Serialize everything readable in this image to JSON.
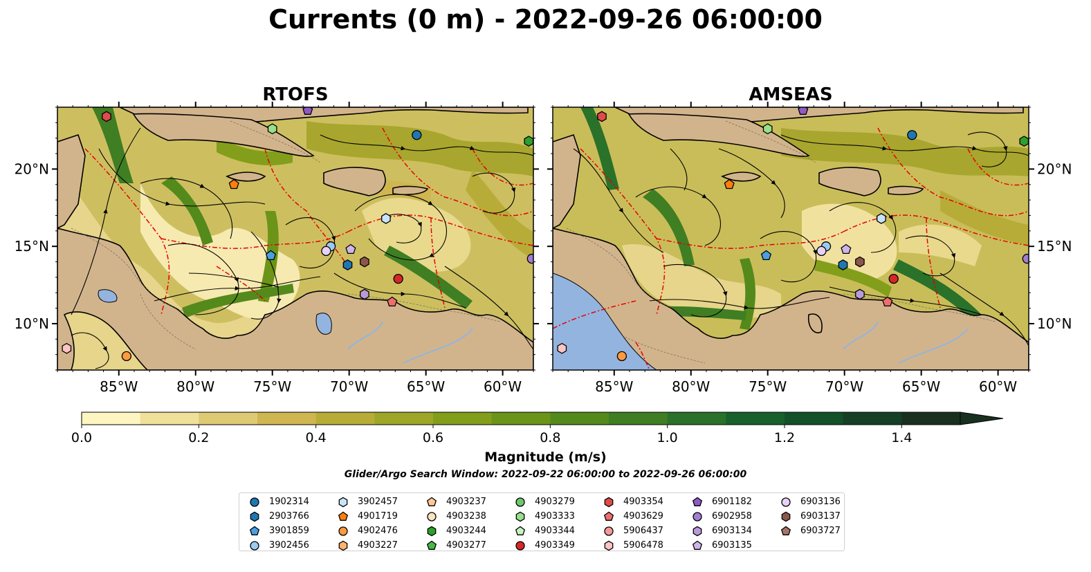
{
  "title": "Currents (0 m) - 2022-09-26 06:00:00",
  "panels": [
    {
      "title": "RTOFS"
    },
    {
      "title": "AMSEAS"
    }
  ],
  "map": {
    "lon_range": [
      -89,
      -58
    ],
    "lat_range": [
      7,
      24
    ],
    "x_ticks": [
      "85°W",
      "80°W",
      "75°W",
      "70°W",
      "65°W",
      "60°W"
    ],
    "y_ticks": [
      "20°N",
      "15°N",
      "10°N"
    ],
    "land_color": "#d2b48c",
    "river_color": "#93b4de",
    "eez_color": "#e60000"
  },
  "colorbar": {
    "label": "Magnitude (m/s)",
    "ticks": [
      "0.0",
      "0.2",
      "0.4",
      "0.6",
      "0.8",
      "1.0",
      "1.2",
      "1.4"
    ],
    "range": [
      0,
      1.5
    ],
    "extend": "max",
    "colors": [
      "#fdf6c0",
      "#efe09a",
      "#dfca74",
      "#cfb651",
      "#b8ac39",
      "#9ea628",
      "#839e1b",
      "#6b9418",
      "#54891c",
      "#3f7e23",
      "#2a7129",
      "#18602c",
      "#12512a",
      "#154026",
      "#1a301f"
    ]
  },
  "search_window": "Glider/Argo Search Window: 2022-09-22 06:00:00 to 2022-09-26 06:00:00",
  "legend": {
    "items": [
      {
        "id": "1902314",
        "marker": "circle",
        "color": "#1f77b4"
      },
      {
        "id": "2903766",
        "marker": "hexagon",
        "color": "#1f77b4"
      },
      {
        "id": "3901859",
        "marker": "pentagon",
        "color": "#4a9fe0"
      },
      {
        "id": "3902456",
        "marker": "circle",
        "color": "#9ec9f0"
      },
      {
        "id": "3902457",
        "marker": "hexagon",
        "color": "#c6e4fa"
      },
      {
        "id": "4901719",
        "marker": "pentagon",
        "color": "#ff7f0e"
      },
      {
        "id": "4902476",
        "marker": "circle",
        "color": "#fd9a3e"
      },
      {
        "id": "4903227",
        "marker": "hexagon",
        "color": "#ffb46a"
      },
      {
        "id": "4903237",
        "marker": "pentagon",
        "color": "#ffc896"
      },
      {
        "id": "4903238",
        "marker": "circle",
        "color": "#ffe2c2"
      },
      {
        "id": "4903244",
        "marker": "hexagon",
        "color": "#2ca02c"
      },
      {
        "id": "4903277",
        "marker": "pentagon",
        "color": "#48b848"
      },
      {
        "id": "4903279",
        "marker": "circle",
        "color": "#6cc86c"
      },
      {
        "id": "4903333",
        "marker": "hexagon",
        "color": "#98df8a"
      },
      {
        "id": "4903344",
        "marker": "pentagon",
        "color": "#c6f2c0"
      },
      {
        "id": "4903349",
        "marker": "circle",
        "color": "#d62728"
      },
      {
        "id": "4903354",
        "marker": "hexagon",
        "color": "#e04a4a"
      },
      {
        "id": "4903629",
        "marker": "pentagon",
        "color": "#ee6e6e"
      },
      {
        "id": "5906437",
        "marker": "circle",
        "color": "#f59a9a"
      },
      {
        "id": "5906478",
        "marker": "hexagon",
        "color": "#fcc4c4"
      },
      {
        "id": "6901182",
        "marker": "pentagon",
        "color": "#8e5bc4"
      },
      {
        "id": "6902958",
        "marker": "circle",
        "color": "#a27ed1"
      },
      {
        "id": "6903134",
        "marker": "hexagon",
        "color": "#b89ad9"
      },
      {
        "id": "6903135",
        "marker": "pentagon",
        "color": "#ceb6ea"
      },
      {
        "id": "6903136",
        "marker": "circle",
        "color": "#e6d2f6"
      },
      {
        "id": "6903137",
        "marker": "hexagon",
        "color": "#8c564b"
      },
      {
        "id": "6903727",
        "marker": "pentagon",
        "color": "#a7746a"
      }
    ]
  },
  "platforms": [
    {
      "id": "1902314",
      "lon": -65.6,
      "lat": 22.2
    },
    {
      "id": "2903766",
      "lon": -70.1,
      "lat": 13.8
    },
    {
      "id": "3901859",
      "lon": -75.1,
      "lat": 14.4
    },
    {
      "id": "3902456",
      "lon": -71.2,
      "lat": 15.0
    },
    {
      "id": "3902457",
      "lon": -67.6,
      "lat": 16.8
    },
    {
      "id": "4901719",
      "lon": -77.5,
      "lat": 19.0
    },
    {
      "id": "4902476",
      "lon": -84.5,
      "lat": 7.9
    },
    {
      "id": "4903244",
      "lon": -58.3,
      "lat": 21.8
    },
    {
      "id": "4903333",
      "lon": -75.0,
      "lat": 22.6
    },
    {
      "id": "4903349",
      "lon": -66.8,
      "lat": 12.9
    },
    {
      "id": "4903354",
      "lon": -85.8,
      "lat": 23.4
    },
    {
      "id": "4903629",
      "lon": -67.2,
      "lat": 11.4
    },
    {
      "id": "5906478",
      "lon": -88.4,
      "lat": 8.4
    },
    {
      "id": "6901182",
      "lon": -72.7,
      "lat": 23.8
    },
    {
      "id": "6902958",
      "lon": -58.1,
      "lat": 14.2
    },
    {
      "id": "6903134",
      "lon": -69.0,
      "lat": 11.9
    },
    {
      "id": "6903135",
      "lon": -69.9,
      "lat": 14.8
    },
    {
      "id": "6903136",
      "lon": -71.5,
      "lat": 14.7
    },
    {
      "id": "6903137",
      "lon": -69.0,
      "lat": 14.0
    }
  ]
}
